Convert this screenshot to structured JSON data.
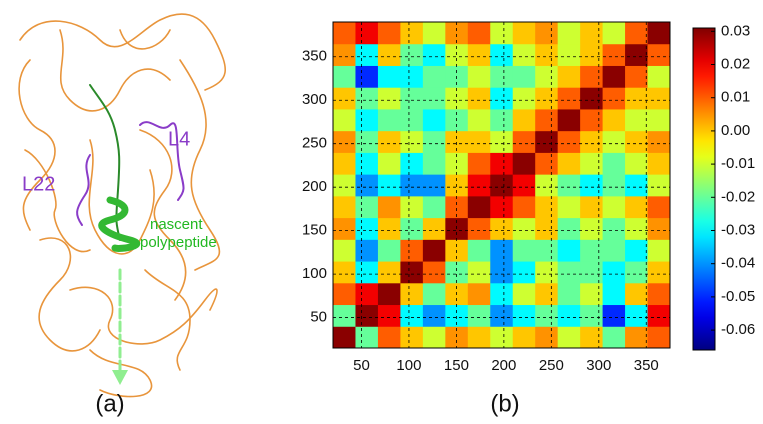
{
  "figure_a": {
    "label": "(a)",
    "annotations": [
      "L4",
      "L22",
      "nascent",
      "polypeptide"
    ]
  },
  "chart_data": {
    "type": "heatmap",
    "label": "(b)",
    "colormap": "jet",
    "grid": true,
    "xlim": [
      20,
      375
    ],
    "ylim": [
      15,
      390
    ],
    "xticks": [
      50,
      100,
      150,
      200,
      250,
      300,
      350
    ],
    "yticks": [
      50,
      100,
      150,
      200,
      250,
      300,
      350
    ],
    "clim": [
      -0.066,
      0.031
    ],
    "cticks": [
      0.03,
      0.02,
      0.01,
      {
        "value": 0,
        "label": "0.00"
      },
      -0.01,
      -0.02,
      -0.03,
      -0.04,
      -0.05,
      -0.06
    ],
    "values": [
      [
        0.03,
        -0.02,
        0.01,
        0.0,
        -0.01,
        0.005,
        0.0,
        -0.01,
        0.0,
        0.005,
        -0.01,
        0.0,
        -0.02,
        0.005,
        0.01
      ],
      [
        -0.02,
        0.03,
        0.02,
        -0.03,
        -0.04,
        -0.03,
        -0.02,
        -0.04,
        -0.03,
        -0.02,
        -0.03,
        -0.02,
        -0.05,
        -0.03,
        0.02
      ],
      [
        0.01,
        0.02,
        0.03,
        0.0,
        -0.02,
        0.0,
        0.005,
        -0.03,
        -0.01,
        0.0,
        -0.02,
        -0.01,
        -0.03,
        0.0,
        0.01
      ],
      [
        0.0,
        -0.03,
        0.0,
        0.03,
        0.01,
        -0.02,
        -0.01,
        -0.04,
        -0.03,
        -0.01,
        -0.02,
        -0.02,
        -0.03,
        -0.02,
        0.0
      ],
      [
        -0.01,
        -0.04,
        -0.02,
        0.01,
        0.03,
        0.0,
        -0.02,
        -0.04,
        -0.02,
        -0.02,
        -0.03,
        -0.02,
        -0.02,
        -0.03,
        -0.01
      ],
      [
        0.005,
        -0.03,
        0.0,
        -0.02,
        0.0,
        0.03,
        0.01,
        0.0,
        -0.01,
        0.0,
        -0.02,
        -0.01,
        -0.02,
        -0.01,
        0.005
      ],
      [
        0.0,
        -0.02,
        0.005,
        -0.01,
        -0.02,
        0.01,
        0.03,
        0.02,
        0.01,
        0.0,
        -0.01,
        0.0,
        -0.01,
        0.0,
        0.01
      ],
      [
        -0.01,
        -0.04,
        -0.03,
        -0.04,
        -0.04,
        0.0,
        0.02,
        0.03,
        0.02,
        -0.01,
        -0.02,
        -0.03,
        -0.02,
        -0.03,
        -0.01
      ],
      [
        0.0,
        -0.03,
        -0.01,
        -0.03,
        -0.02,
        -0.01,
        0.01,
        0.02,
        0.03,
        0.01,
        0.0,
        -0.01,
        -0.02,
        -0.01,
        0.0
      ],
      [
        0.005,
        -0.02,
        0.0,
        -0.01,
        -0.02,
        0.0,
        0.0,
        -0.01,
        0.01,
        0.03,
        0.01,
        0.0,
        -0.01,
        0.0,
        0.005
      ],
      [
        -0.01,
        -0.03,
        -0.02,
        -0.02,
        -0.03,
        -0.02,
        -0.01,
        -0.02,
        0.0,
        0.01,
        0.03,
        0.01,
        0.0,
        -0.01,
        -0.01
      ],
      [
        0.0,
        -0.02,
        -0.01,
        -0.02,
        -0.02,
        -0.01,
        0.0,
        -0.03,
        -0.01,
        0.0,
        0.01,
        0.03,
        0.01,
        0.0,
        0.0
      ],
      [
        -0.02,
        -0.05,
        -0.03,
        -0.03,
        -0.02,
        -0.02,
        -0.01,
        -0.02,
        -0.02,
        -0.01,
        0.0,
        0.01,
        0.03,
        0.01,
        -0.01
      ],
      [
        0.005,
        -0.03,
        0.0,
        -0.02,
        -0.03,
        -0.01,
        0.0,
        -0.03,
        -0.01,
        0.0,
        -0.01,
        0.0,
        0.01,
        0.03,
        0.01
      ],
      [
        0.01,
        0.02,
        0.01,
        0.0,
        -0.01,
        0.005,
        0.01,
        -0.01,
        0.0,
        0.005,
        -0.01,
        0.0,
        -0.01,
        0.01,
        0.03
      ]
    ]
  }
}
